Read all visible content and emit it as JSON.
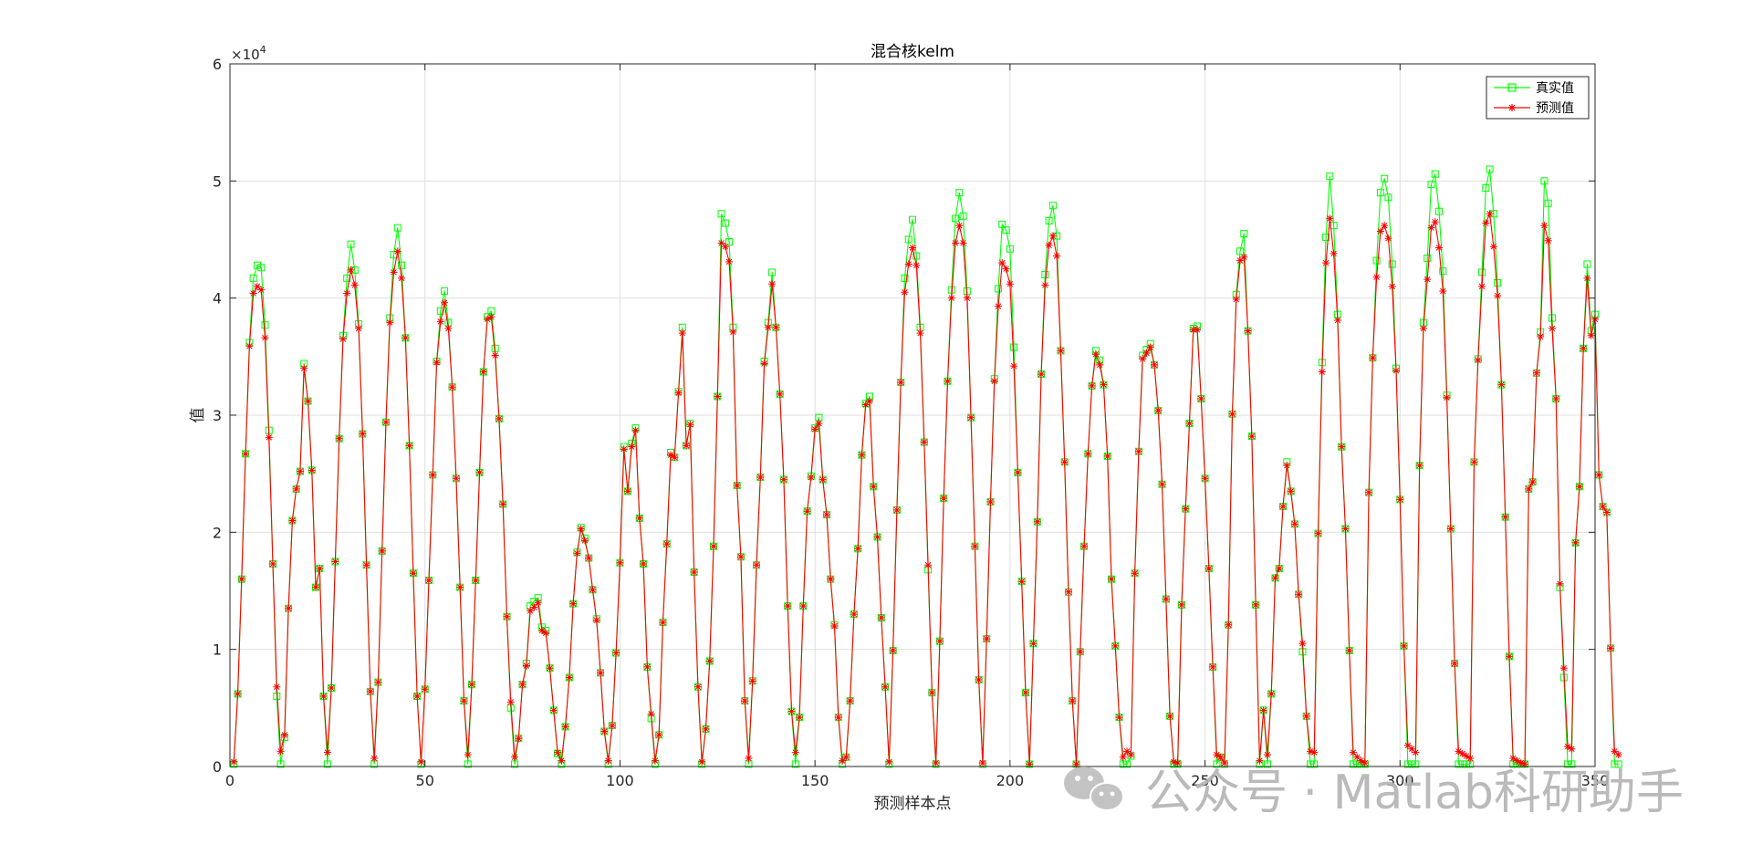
{
  "chart_data": {
    "type": "line",
    "title": "混合核kelm",
    "xlabel": "预测样本点",
    "ylabel": "值",
    "y_exponent": "×10",
    "y_exponent_power": "4",
    "xlim": [
      0,
      350
    ],
    "ylim": [
      0,
      6
    ],
    "xticks": [
      0,
      50,
      100,
      150,
      200,
      250,
      300,
      350
    ],
    "yticks": [
      0,
      1,
      2,
      3,
      4,
      5,
      6
    ],
    "grid": true,
    "legend_position": "top-right",
    "series": [
      {
        "name": "真实值",
        "color": "#00ff00",
        "marker": "square",
        "values": [
          0.02,
          0.62,
          1.6,
          2.67,
          3.62,
          4.17,
          4.28,
          4.26,
          3.77,
          2.87,
          1.73,
          0.6,
          0.02,
          0.25,
          1.35,
          2.1,
          2.37,
          2.52,
          3.44,
          3.12,
          2.53,
          1.53,
          1.69,
          0.6,
          0.02,
          0.67,
          1.75,
          2.8,
          3.68,
          4.17,
          4.46,
          4.24,
          3.78,
          2.84,
          1.72,
          0.64,
          0.02,
          0.72,
          1.84,
          2.94,
          3.83,
          4.37,
          4.6,
          4.28,
          3.66,
          2.74,
          1.65,
          0.6,
          0.02,
          0.66,
          1.59,
          2.49,
          3.46,
          3.89,
          4.06,
          3.79,
          3.24,
          2.46,
          1.53,
          0.56,
          0.02,
          0.7,
          1.59,
          2.51,
          3.37,
          3.84,
          3.89,
          3.57,
          2.97,
          2.24,
          1.28,
          0.5,
          0.02,
          0.24,
          0.7,
          0.88,
          1.37,
          1.41,
          1.44,
          1.19,
          1.16,
          0.84,
          0.48,
          0.11,
          0.02,
          0.34,
          0.76,
          1.39,
          1.83,
          2.04,
          1.95,
          1.78,
          1.51,
          1.26,
          0.8,
          0.3,
          0.02,
          0.35,
          0.97,
          1.74,
          2.73,
          2.35,
          2.76,
          2.89,
          2.12,
          1.73,
          0.85,
          0.41,
          0.02,
          0.27,
          1.23,
          1.9,
          2.68,
          2.64,
          3.2,
          3.75,
          2.74,
          2.93,
          1.66,
          0.68,
          0.02,
          0.32,
          0.9,
          1.88,
          3.16,
          4.72,
          4.64,
          4.48,
          3.75,
          2.4,
          1.79,
          0.56,
          0.02,
          0.73,
          1.72,
          2.47,
          3.46,
          3.79,
          4.22,
          3.75,
          3.18,
          2.45,
          1.37,
          0.47,
          0.02,
          0.42,
          1.37,
          2.18,
          2.48,
          2.89,
          2.98,
          2.45,
          2.15,
          1.6,
          1.21,
          0.42,
          0.02,
          0.08,
          0.56,
          1.3,
          1.86,
          2.66,
          3.1,
          3.16,
          2.39,
          1.96,
          1.27,
          0.68,
          0.02,
          0.99,
          2.19,
          3.28,
          4.17,
          4.5,
          4.67,
          4.36,
          3.75,
          2.77,
          1.68,
          0.63,
          0.02,
          1.07,
          2.29,
          3.29,
          4.07,
          4.68,
          4.9,
          4.7,
          4.06,
          2.98,
          1.88,
          0.74,
          0.02,
          1.09,
          2.26,
          3.31,
          4.08,
          4.63,
          4.58,
          4.42,
          3.58,
          2.51,
          1.58,
          0.63,
          0.02,
          1.05,
          2.09,
          3.35,
          4.2,
          4.66,
          4.79,
          4.53,
          3.55,
          2.6,
          1.49,
          0.56,
          0.02,
          0.98,
          1.88,
          2.67,
          3.25,
          3.55,
          3.47,
          3.26,
          2.65,
          1.6,
          1.03,
          0.42,
          0.02,
          0.02,
          0.09,
          1.65,
          2.69,
          3.51,
          3.56,
          3.61,
          3.43,
          3.04,
          2.41,
          1.43,
          0.43,
          0.02,
          0.02,
          1.38,
          2.2,
          2.93,
          3.74,
          3.76,
          3.14,
          2.46,
          1.69,
          0.85,
          0.02,
          0.08,
          0.02,
          1.21,
          3.01,
          4.03,
          4.4,
          4.55,
          3.72,
          2.82,
          1.38,
          0.02,
          0.48,
          0.02,
          0.62,
          1.61,
          1.69,
          2.22,
          2.6,
          2.35,
          2.07,
          1.47,
          0.98,
          0.43,
          0.02,
          0.02,
          1.99,
          3.45,
          4.52,
          5.04,
          4.62,
          3.86,
          2.73,
          2.03,
          0.99,
          0.02,
          0.02,
          0.02,
          0.02,
          2.34,
          3.49,
          4.32,
          4.9,
          5.02,
          4.86,
          4.29,
          3.4,
          2.28,
          1.03,
          0.02,
          0.02,
          0.02,
          2.57,
          3.79,
          4.34,
          4.97,
          5.06,
          4.74,
          4.23,
          3.17,
          2.03,
          0.88,
          0.02,
          0.02,
          0.02,
          0.02,
          2.6,
          3.48,
          4.22,
          4.94,
          5.1,
          4.72,
          4.13,
          3.26,
          2.13,
          0.94,
          0.02,
          0.02,
          0.02,
          0.02,
          2.37,
          2.43,
          3.36,
          3.71,
          5.0,
          4.81,
          3.83,
          3.14,
          1.53,
          0.76,
          0.02,
          0.02,
          1.91,
          2.39,
          3.57,
          4.29,
          3.72,
          3.86,
          2.49,
          2.22,
          2.17,
          1.01,
          0.02,
          0.02
        ]
      },
      {
        "name": "预测值",
        "color": "#ff0000",
        "marker": "star",
        "values": [
          0.04,
          0.62,
          1.6,
          2.67,
          3.59,
          4.04,
          4.1,
          4.07,
          3.66,
          2.81,
          1.73,
          0.68,
          0.13,
          0.27,
          1.35,
          2.1,
          2.37,
          2.52,
          3.4,
          3.12,
          2.53,
          1.53,
          1.69,
          0.6,
          0.12,
          0.67,
          1.75,
          2.8,
          3.65,
          4.04,
          4.24,
          4.11,
          3.74,
          2.84,
          1.72,
          0.64,
          0.07,
          0.72,
          1.84,
          2.94,
          3.79,
          4.22,
          4.4,
          4.17,
          3.66,
          2.74,
          1.65,
          0.6,
          0.04,
          0.66,
          1.59,
          2.49,
          3.45,
          3.8,
          3.96,
          3.74,
          3.24,
          2.46,
          1.53,
          0.56,
          0.1,
          0.7,
          1.59,
          2.51,
          3.37,
          3.82,
          3.84,
          3.51,
          2.97,
          2.24,
          1.28,
          0.55,
          0.08,
          0.24,
          0.7,
          0.86,
          1.33,
          1.36,
          1.4,
          1.16,
          1.14,
          0.84,
          0.48,
          0.12,
          0.05,
          0.34,
          0.76,
          1.39,
          1.82,
          2.03,
          1.93,
          1.78,
          1.51,
          1.25,
          0.8,
          0.3,
          0.05,
          0.35,
          0.97,
          1.74,
          2.71,
          2.35,
          2.73,
          2.87,
          2.12,
          1.73,
          0.85,
          0.45,
          0.05,
          0.27,
          1.23,
          1.9,
          2.66,
          2.64,
          3.19,
          3.7,
          2.74,
          2.92,
          1.66,
          0.68,
          0.04,
          0.32,
          0.9,
          1.88,
          3.16,
          4.47,
          4.44,
          4.31,
          3.71,
          2.4,
          1.79,
          0.56,
          0.07,
          0.73,
          1.72,
          2.47,
          3.44,
          3.75,
          4.12,
          3.75,
          3.18,
          2.45,
          1.37,
          0.47,
          0.12,
          0.42,
          1.37,
          2.18,
          2.47,
          2.88,
          2.93,
          2.45,
          2.15,
          1.6,
          1.2,
          0.42,
          0.05,
          0.08,
          0.56,
          1.3,
          1.86,
          2.66,
          3.09,
          3.12,
          2.39,
          1.96,
          1.27,
          0.68,
          0.04,
          0.99,
          2.19,
          3.28,
          4.05,
          4.29,
          4.43,
          4.28,
          3.7,
          2.77,
          1.72,
          0.63,
          0.03,
          1.07,
          2.29,
          3.29,
          4.0,
          4.47,
          4.62,
          4.47,
          4.0,
          2.98,
          1.88,
          0.74,
          0.03,
          1.09,
          2.26,
          3.29,
          3.93,
          4.3,
          4.25,
          4.12,
          3.42,
          2.51,
          1.58,
          0.63,
          0.02,
          1.05,
          2.09,
          3.35,
          4.11,
          4.45,
          4.53,
          4.36,
          3.55,
          2.6,
          1.49,
          0.56,
          0.02,
          0.98,
          1.88,
          2.67,
          3.25,
          3.52,
          3.43,
          3.26,
          2.65,
          1.6,
          1.03,
          0.42,
          0.08,
          0.13,
          0.1,
          1.65,
          2.69,
          3.48,
          3.53,
          3.58,
          3.43,
          3.04,
          2.41,
          1.43,
          0.43,
          0.04,
          0.03,
          1.38,
          2.2,
          2.93,
          3.73,
          3.73,
          3.14,
          2.46,
          1.69,
          0.85,
          0.1,
          0.08,
          0.03,
          1.21,
          3.01,
          3.99,
          4.32,
          4.35,
          3.72,
          2.82,
          1.38,
          0.05,
          0.48,
          0.1,
          0.62,
          1.61,
          1.69,
          2.22,
          2.57,
          2.35,
          2.07,
          1.47,
          1.05,
          0.43,
          0.13,
          0.12,
          1.99,
          3.37,
          4.3,
          4.68,
          4.38,
          3.81,
          2.73,
          2.03,
          0.99,
          0.12,
          0.08,
          0.05,
          0.03,
          2.34,
          3.49,
          4.18,
          4.57,
          4.62,
          4.51,
          4.1,
          3.38,
          2.28,
          1.03,
          0.18,
          0.15,
          0.12,
          2.57,
          3.74,
          4.16,
          4.6,
          4.65,
          4.43,
          4.06,
          3.15,
          2.03,
          0.88,
          0.13,
          0.11,
          0.09,
          0.07,
          2.6,
          3.47,
          4.1,
          4.64,
          4.72,
          4.44,
          4.02,
          3.26,
          2.13,
          0.94,
          0.07,
          0.05,
          0.03,
          0.02,
          2.37,
          2.43,
          3.36,
          3.67,
          4.62,
          4.49,
          3.74,
          3.14,
          1.56,
          0.84,
          0.17,
          0.15,
          1.91,
          2.39,
          3.57,
          4.17,
          3.68,
          3.82,
          2.49,
          2.22,
          2.17,
          1.01,
          0.13,
          0.1
        ]
      }
    ]
  },
  "watermark": {
    "text": "公众号 · Matlab科研助手",
    "icon": "wechat-icon"
  }
}
